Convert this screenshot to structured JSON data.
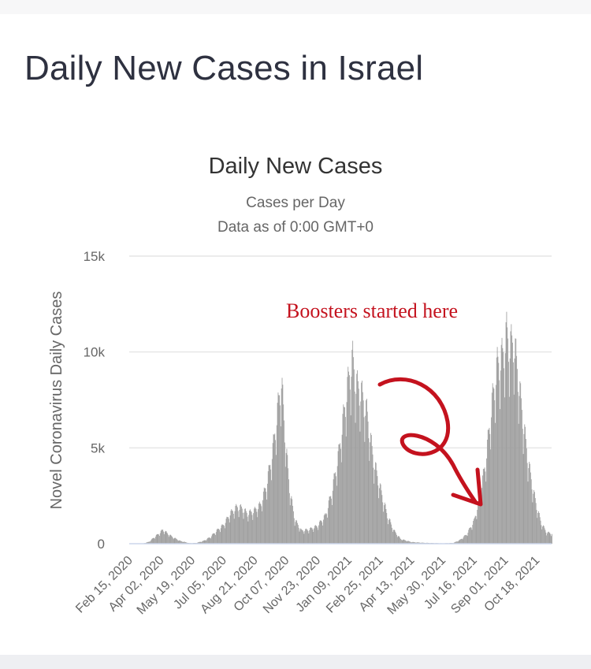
{
  "page": {
    "title": "Daily New Cases in Israel"
  },
  "chart_data": {
    "type": "bar",
    "title": "Daily New Cases",
    "subtitle_lines": [
      "Cases per Day",
      "Data as of 0:00 GMT+0"
    ],
    "ylabel": "Novel Coronavirus Daily Cases",
    "xlabel": "",
    "ylim": [
      0,
      15000
    ],
    "y_ticks": [
      0,
      5000,
      10000,
      15000
    ],
    "y_tick_labels": [
      "0",
      "5k",
      "10k",
      "15k"
    ],
    "x_range": [
      "2020-02-15",
      "2021-11-10"
    ],
    "x_ticks": [
      "2020-02-15",
      "2020-04-02",
      "2020-05-19",
      "2020-07-05",
      "2020-08-21",
      "2020-10-07",
      "2020-11-23",
      "2021-01-09",
      "2021-02-25",
      "2021-04-13",
      "2021-05-30",
      "2021-07-16",
      "2021-09-01",
      "2021-10-18"
    ],
    "x_tick_labels": [
      "Feb 15, 2020",
      "Apr 02, 2020",
      "May 19, 2020",
      "Jul 05, 2020",
      "Aug 21, 2020",
      "Oct 07, 2020",
      "Nov 23, 2020",
      "Jan 09, 2021",
      "Feb 25, 2021",
      "Apr 13, 2021",
      "May 30, 2021",
      "Jul 16, 2021",
      "Sep 01, 2021",
      "Oct 18, 2021"
    ],
    "grid": true,
    "bar_color": "#9e9e9e",
    "series": [
      {
        "points": [
          [
            "2020-02-15",
            0
          ],
          [
            "2020-03-05",
            0
          ],
          [
            "2020-03-15",
            100
          ],
          [
            "2020-03-25",
            400
          ],
          [
            "2020-04-01",
            600
          ],
          [
            "2020-04-05",
            750
          ],
          [
            "2020-04-12",
            550
          ],
          [
            "2020-04-20",
            350
          ],
          [
            "2020-05-01",
            150
          ],
          [
            "2020-05-15",
            30
          ],
          [
            "2020-05-25",
            40
          ],
          [
            "2020-06-05",
            150
          ],
          [
            "2020-06-15",
            350
          ],
          [
            "2020-06-25",
            700
          ],
          [
            "2020-07-05",
            1000
          ],
          [
            "2020-07-15",
            1600
          ],
          [
            "2020-07-25",
            1950
          ],
          [
            "2020-08-01",
            1900
          ],
          [
            "2020-08-10",
            1600
          ],
          [
            "2020-08-20",
            1750
          ],
          [
            "2020-08-30",
            2100
          ],
          [
            "2020-09-08",
            3200
          ],
          [
            "2020-09-17",
            5000
          ],
          [
            "2020-09-24",
            7000
          ],
          [
            "2020-09-30",
            8800
          ],
          [
            "2020-10-05",
            6000
          ],
          [
            "2020-10-12",
            3000
          ],
          [
            "2020-10-20",
            1300
          ],
          [
            "2020-10-30",
            700
          ],
          [
            "2020-11-10",
            750
          ],
          [
            "2020-11-23",
            950
          ],
          [
            "2020-12-05",
            1500
          ],
          [
            "2020-12-15",
            2800
          ],
          [
            "2020-12-25",
            4800
          ],
          [
            "2021-01-02",
            7000
          ],
          [
            "2021-01-09",
            8800
          ],
          [
            "2021-01-15",
            9800
          ],
          [
            "2021-01-20",
            8500
          ],
          [
            "2021-01-28",
            8000
          ],
          [
            "2021-02-05",
            7000
          ],
          [
            "2021-02-15",
            4500
          ],
          [
            "2021-02-25",
            3000
          ],
          [
            "2021-03-08",
            1500
          ],
          [
            "2021-03-18",
            700
          ],
          [
            "2021-03-28",
            250
          ],
          [
            "2021-04-13",
            90
          ],
          [
            "2021-05-01",
            50
          ],
          [
            "2021-05-30",
            20
          ],
          [
            "2021-06-15",
            40
          ],
          [
            "2021-06-25",
            200
          ],
          [
            "2021-07-05",
            500
          ],
          [
            "2021-07-16",
            1200
          ],
          [
            "2021-07-25",
            2500
          ],
          [
            "2021-08-03",
            4500
          ],
          [
            "2021-08-12",
            7500
          ],
          [
            "2021-08-20",
            9500
          ],
          [
            "2021-08-28",
            10000
          ],
          [
            "2021-09-03",
            11200
          ],
          [
            "2021-09-08",
            10500
          ],
          [
            "2021-09-14",
            10800
          ],
          [
            "2021-09-20",
            9000
          ],
          [
            "2021-09-28",
            6500
          ],
          [
            "2021-10-05",
            4500
          ],
          [
            "2021-10-12",
            3000
          ],
          [
            "2021-10-18",
            2000
          ],
          [
            "2021-10-25",
            1100
          ],
          [
            "2021-11-02",
            600
          ],
          [
            "2021-11-10",
            550
          ]
        ]
      }
    ],
    "annotations": [
      {
        "text": "Boosters started here",
        "color": "#c4121e"
      }
    ]
  }
}
